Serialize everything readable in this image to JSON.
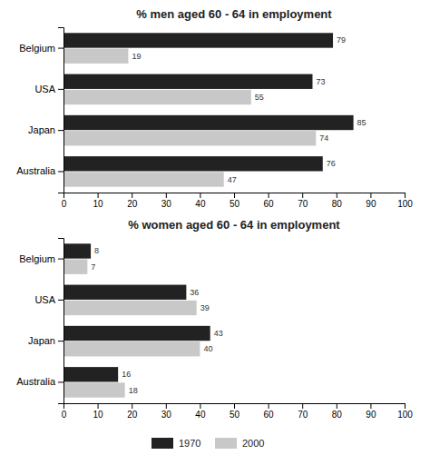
{
  "chart_data": [
    {
      "type": "bar",
      "orientation": "horizontal",
      "title": "% men aged 60 - 64 in employment",
      "categories": [
        "Belgium",
        "USA",
        "Japan",
        "Australia"
      ],
      "series": [
        {
          "name": "1970",
          "color": "#222222",
          "values": [
            79,
            73,
            85,
            76
          ]
        },
        {
          "name": "2000",
          "color": "#c8c8c8",
          "values": [
            19,
            55,
            74,
            47
          ]
        }
      ],
      "xlim": [
        0,
        100
      ],
      "xticks": [
        0,
        10,
        20,
        30,
        40,
        50,
        60,
        70,
        80,
        90,
        100
      ],
      "data_labels": true,
      "grid": false,
      "legend": "bottom"
    },
    {
      "type": "bar",
      "orientation": "horizontal",
      "title": "% women aged 60 - 64 in employment",
      "categories": [
        "Belgium",
        "USA",
        "Japan",
        "Australia"
      ],
      "series": [
        {
          "name": "1970",
          "color": "#222222",
          "values": [
            8,
            36,
            43,
            16
          ]
        },
        {
          "name": "2000",
          "color": "#c8c8c8",
          "values": [
            7,
            39,
            40,
            18
          ]
        }
      ],
      "xlim": [
        0,
        100
      ],
      "xticks": [
        0,
        10,
        20,
        30,
        40,
        50,
        60,
        70,
        80,
        90,
        100
      ],
      "data_labels": true,
      "grid": false,
      "legend": "bottom"
    }
  ]
}
